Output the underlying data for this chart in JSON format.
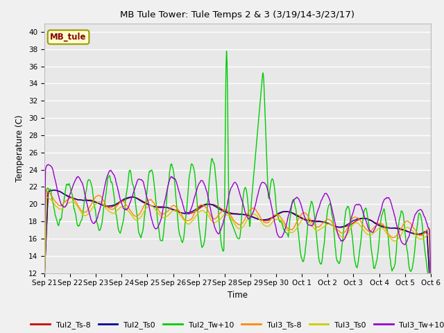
{
  "title": "MB Tule Tower: Tule Temps 2 & 3 (3/19/14-3/23/17)",
  "xlabel": "Time",
  "ylabel": "Temperature (C)",
  "ylim": [
    12,
    41
  ],
  "yticks": [
    12,
    14,
    16,
    18,
    20,
    22,
    24,
    26,
    28,
    30,
    32,
    34,
    36,
    38,
    40
  ],
  "bg_color": "#e8e8e8",
  "grid_color": "#ffffff",
  "fig_bg": "#f0f0f0",
  "colors": {
    "Tul2_Ts-8": "#cc0000",
    "Tul2_Ts0": "#000099",
    "Tul2_Tw+10": "#00cc00",
    "Tul3_Ts-8": "#ff8800",
    "Tul3_Ts0": "#cccc00",
    "Tul3_Tw+10": "#9900cc"
  },
  "xtick_labels": [
    "Sep 21",
    "Sep 22",
    "Sep 23",
    "Sep 24",
    "Sep 25",
    "Sep 26",
    "Sep 27",
    "Sep 28",
    "Sep 29",
    "Sep 30",
    "Oct 1",
    "Oct 2",
    "Oct 3",
    "Oct 4",
    "Oct 5",
    "Oct 6"
  ],
  "annotation_text": "MB_tule"
}
